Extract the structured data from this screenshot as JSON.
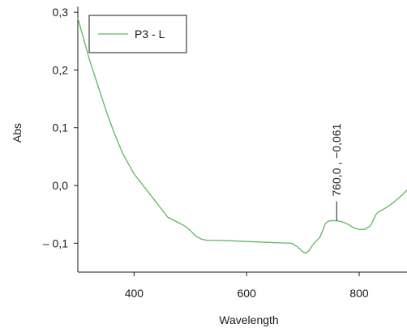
{
  "chart_data": {
    "type": "line",
    "xlabel": "Wavelength",
    "ylabel": "Abs",
    "xlim": [
      300,
      885
    ],
    "ylim": [
      -0.15,
      0.31
    ],
    "x_ticks": [
      {
        "value": 400,
        "label": "400"
      },
      {
        "value": 600,
        "label": "600"
      },
      {
        "value": 800,
        "label": "800"
      }
    ],
    "y_ticks": [
      {
        "value": 0.3,
        "label": "0,3"
      },
      {
        "value": 0.2,
        "label": "0,2"
      },
      {
        "value": 0.1,
        "label": "0,1"
      },
      {
        "value": 0.0,
        "label": "0,0"
      },
      {
        "value": -0.1,
        "label": "– 0,1"
      }
    ],
    "grid": false,
    "legend": {
      "placement": "top-left"
    },
    "series": [
      {
        "name": "P3 - L",
        "color": "#5cb85c",
        "x": [
          300,
          310,
          320,
          335,
          350,
          365,
          380,
          400,
          420,
          440,
          460,
          480,
          490,
          500,
          510,
          520,
          530,
          550,
          600,
          650,
          680,
          690,
          700,
          705,
          710,
          715,
          720,
          730,
          740,
          745,
          750,
          760,
          770,
          780,
          790,
          800,
          810,
          820,
          830,
          835,
          840,
          850,
          860,
          870,
          880,
          885
        ],
        "y": [
          0.29,
          0.255,
          0.22,
          0.175,
          0.13,
          0.09,
          0.055,
          0.02,
          -0.005,
          -0.03,
          -0.055,
          -0.065,
          -0.07,
          -0.078,
          -0.088,
          -0.093,
          -0.095,
          -0.095,
          -0.097,
          -0.099,
          -0.1,
          -0.106,
          -0.115,
          -0.117,
          -0.114,
          -0.106,
          -0.1,
          -0.09,
          -0.066,
          -0.062,
          -0.061,
          -0.061,
          -0.063,
          -0.067,
          -0.073,
          -0.076,
          -0.076,
          -0.07,
          -0.05,
          -0.045,
          -0.043,
          -0.037,
          -0.03,
          -0.022,
          -0.013,
          -0.008
        ]
      }
    ],
    "annotations": [
      {
        "x": 760,
        "y": -0.061,
        "text": "760,0 , −0,061"
      }
    ]
  }
}
